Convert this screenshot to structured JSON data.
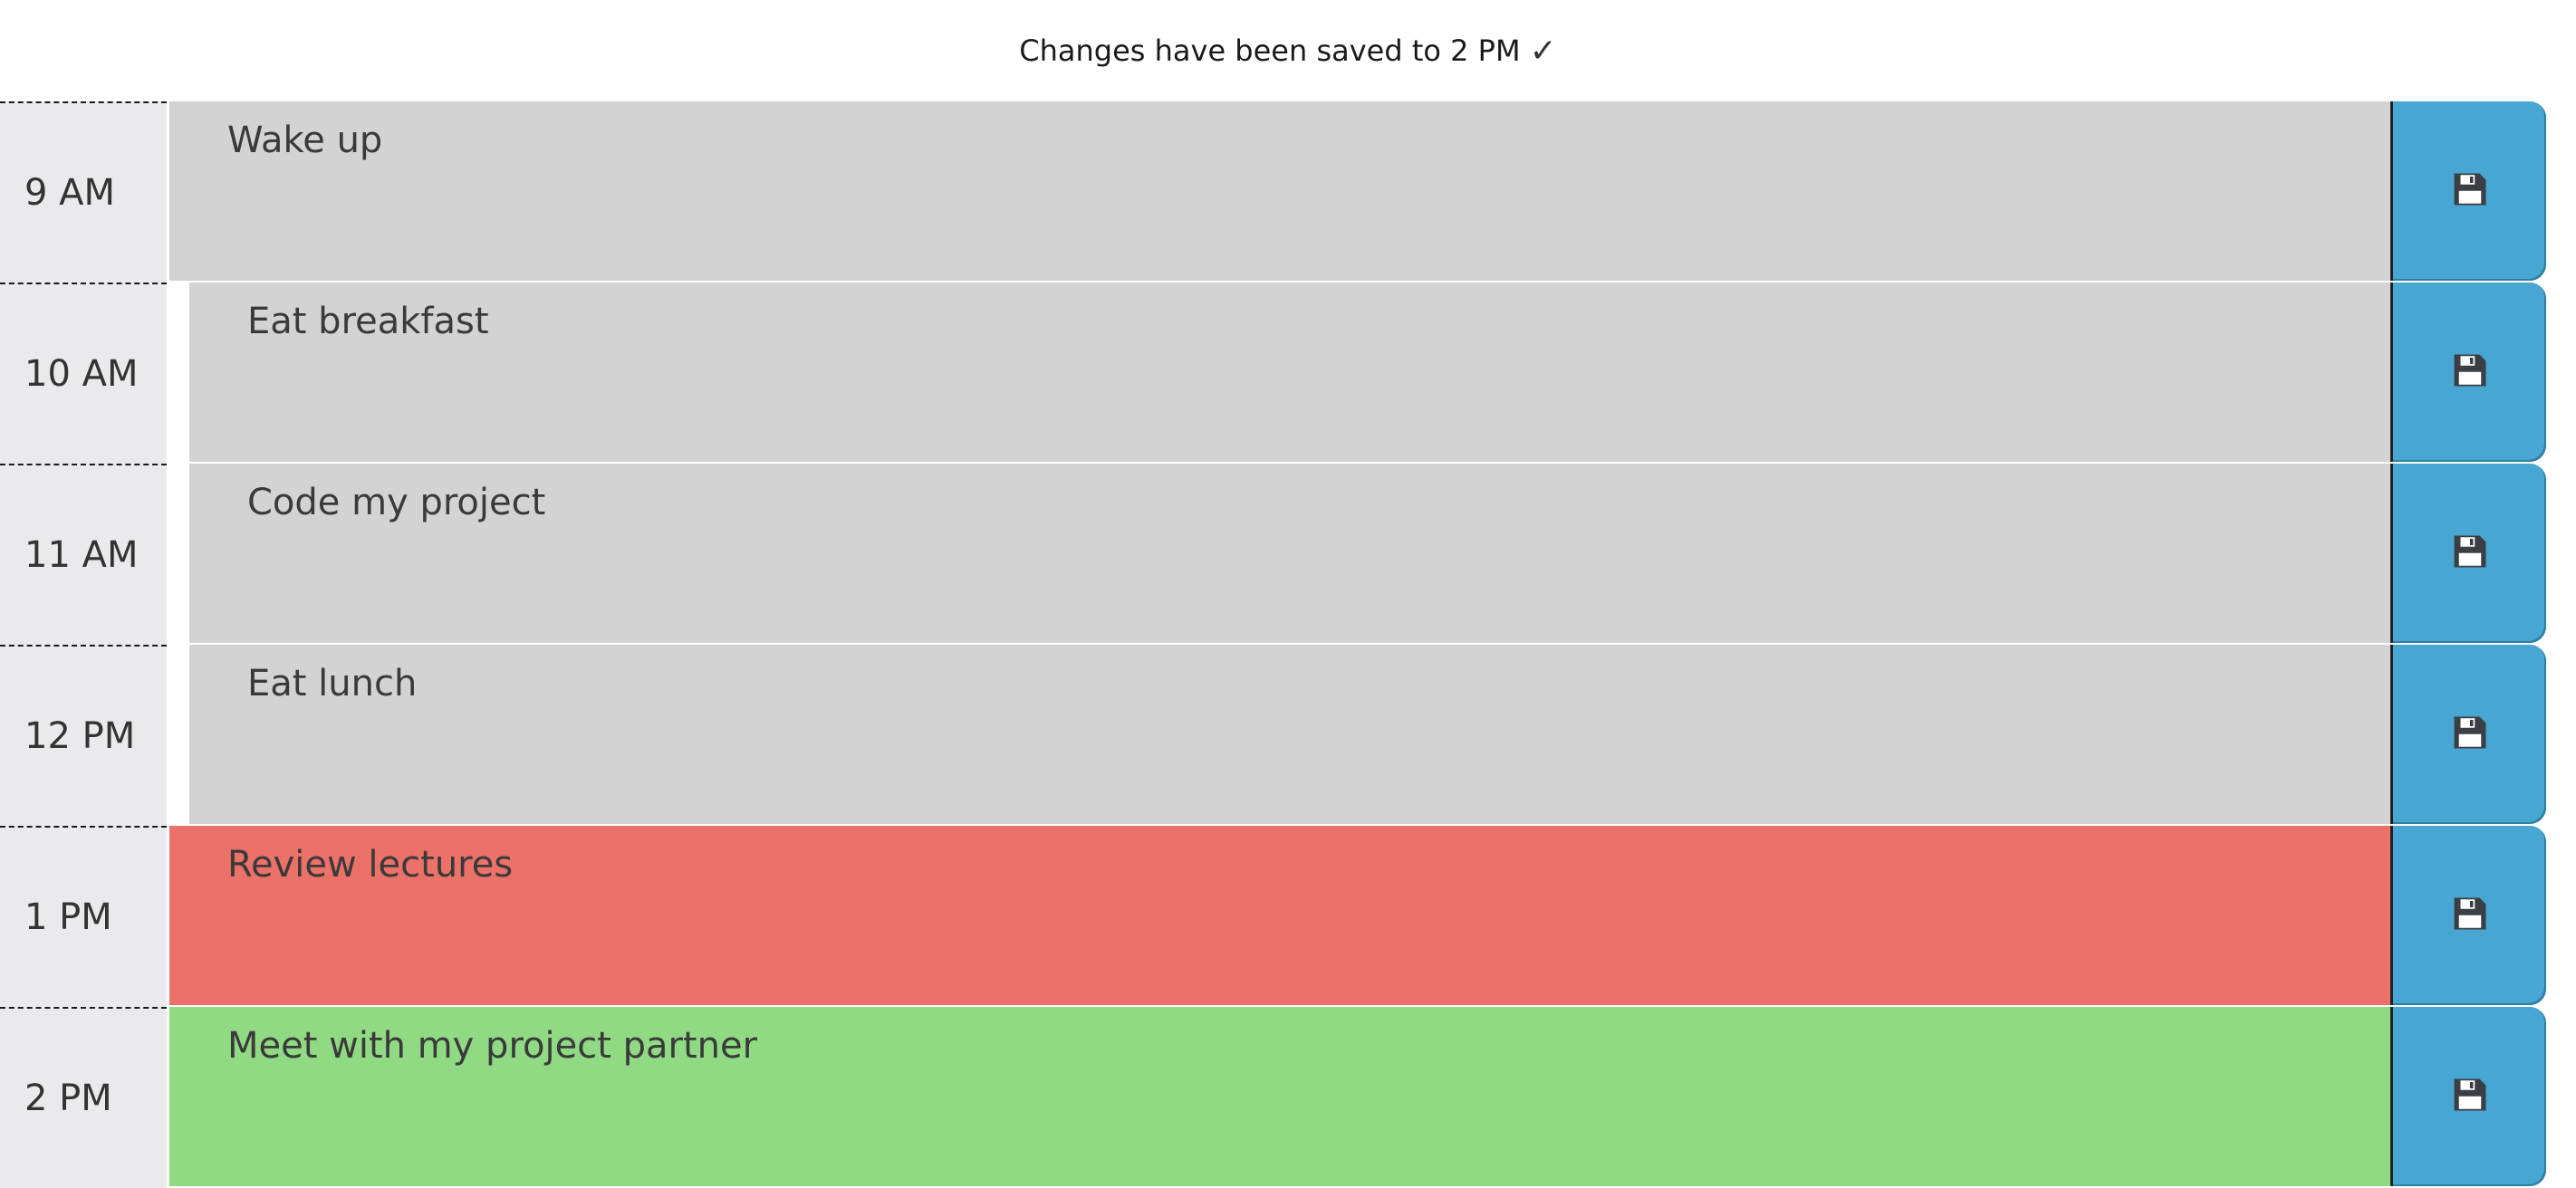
{
  "status": {
    "message": "Changes have been saved to 2 PM",
    "check": "✓"
  },
  "rows": [
    {
      "hour": "9 AM",
      "text": "Wake up",
      "state": "past"
    },
    {
      "hour": "10 AM",
      "text": "Eat breakfast",
      "state": "past"
    },
    {
      "hour": "11 AM",
      "text": "Code my project",
      "state": "past"
    },
    {
      "hour": "12 PM",
      "text": "Eat lunch",
      "state": "past"
    },
    {
      "hour": "1 PM",
      "text": "Review lectures",
      "state": "present"
    },
    {
      "hour": "2 PM",
      "text": "Meet with my project partner",
      "state": "future"
    }
  ],
  "colors": {
    "past": "#d3d3d3",
    "present": "#ec7168",
    "future": "#90da83",
    "save_button": "#47a7d2"
  },
  "icons": {
    "save": "floppy-disk-icon"
  }
}
